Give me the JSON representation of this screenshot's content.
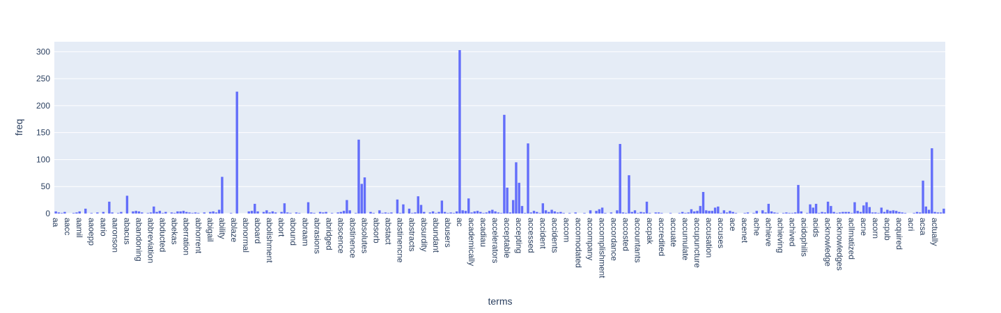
{
  "chart_data": {
    "type": "bar",
    "x_label": "terms",
    "y_label": "freq",
    "color": "#636efa",
    "grid": true,
    "ylim": [
      0,
      318.5
    ],
    "yticks": [
      0,
      50,
      100,
      150,
      200,
      250,
      300
    ],
    "categories": [
      "aa",
      null,
      null,
      null,
      "aacc",
      null,
      null,
      null,
      "aamil",
      null,
      null,
      null,
      "aaoepp",
      null,
      null,
      null,
      "aario",
      null,
      null,
      null,
      "aaronson",
      null,
      null,
      null,
      "abacus",
      null,
      null,
      null,
      "abandoning",
      null,
      null,
      null,
      "abbreviation",
      null,
      null,
      null,
      "abducted",
      null,
      null,
      null,
      "abekas",
      null,
      null,
      null,
      "aberration",
      null,
      null,
      null,
      "abhorrent",
      null,
      null,
      null,
      "abigail",
      null,
      null,
      null,
      "ability",
      null,
      null,
      null,
      "ablaze",
      null,
      null,
      null,
      "abnormal",
      null,
      null,
      null,
      "aboard",
      null,
      null,
      null,
      "abolishment",
      null,
      null,
      null,
      "abort",
      null,
      null,
      null,
      "abound",
      null,
      null,
      null,
      "abraam",
      null,
      null,
      null,
      "abrasions",
      null,
      null,
      null,
      "abridged",
      null,
      null,
      null,
      "abscence",
      null,
      null,
      null,
      "abstinence",
      null,
      null,
      null,
      "absolutes",
      null,
      null,
      null,
      "absorb",
      null,
      null,
      null,
      "abstact",
      null,
      null,
      null,
      "abstinencne",
      null,
      null,
      null,
      "abstracts",
      null,
      null,
      null,
      "absurdity",
      null,
      null,
      null,
      "abundant",
      null,
      null,
      null,
      "abusers",
      null,
      null,
      null,
      "ac",
      null,
      null,
      null,
      "academically",
      null,
      null,
      null,
      "acadiau",
      null,
      null,
      null,
      "accelerators",
      null,
      null,
      null,
      "acceptable",
      null,
      null,
      null,
      "accepting",
      null,
      null,
      null,
      "accessed",
      null,
      null,
      null,
      "accident",
      null,
      null,
      null,
      "accidents",
      null,
      null,
      null,
      "accom",
      null,
      null,
      null,
      "accomodated",
      null,
      null,
      null,
      "accompany",
      null,
      null,
      null,
      "accomplishment",
      null,
      null,
      null,
      "accordance",
      null,
      null,
      null,
      "accosted",
      null,
      null,
      null,
      "accountants",
      null,
      null,
      null,
      "accpak",
      null,
      null,
      null,
      "accredited",
      null,
      null,
      null,
      "accuate",
      null,
      null,
      null,
      "accumulate",
      null,
      null,
      null,
      "accupuncture",
      null,
      null,
      null,
      "accusation",
      null,
      null,
      null,
      "accuses",
      null,
      null,
      null,
      "ace",
      null,
      null,
      null,
      "acenet",
      null,
      null,
      null,
      "ache",
      null,
      null,
      null,
      "achieve",
      null,
      null,
      null,
      "achieving",
      null,
      null,
      null,
      "achived",
      null,
      null,
      null,
      "acidophilis",
      null,
      null,
      null,
      "acids",
      null,
      null,
      null,
      "acknowledge",
      null,
      null,
      null,
      "acknowledges",
      null,
      null,
      null,
      "acllmatized",
      null,
      null,
      null,
      "acne",
      null,
      null,
      null,
      "acorn",
      null,
      null,
      null,
      "acpub",
      null,
      null,
      null,
      "acquired",
      null,
      null,
      null,
      "acri",
      null,
      null,
      null,
      "acsa",
      null,
      null,
      null,
      "actually",
      null,
      null,
      null
    ],
    "values": [
      4,
      2,
      1,
      3,
      0,
      0,
      1,
      2,
      4,
      0,
      9,
      0,
      1,
      0,
      2,
      0,
      3,
      0,
      22,
      2,
      0,
      1,
      3,
      0,
      33,
      0,
      4,
      5,
      4,
      2,
      0,
      1,
      2,
      13,
      3,
      5,
      1,
      3,
      0,
      2,
      1,
      4,
      4,
      5,
      3,
      2,
      1,
      2,
      1,
      0,
      2,
      0,
      3,
      4,
      2,
      7,
      68,
      0,
      0,
      1,
      0,
      226,
      0,
      0,
      0,
      4,
      5,
      18,
      4,
      0,
      3,
      6,
      2,
      4,
      2,
      0,
      3,
      19,
      2,
      1,
      0,
      2,
      1,
      0,
      0,
      21,
      2,
      1,
      0,
      3,
      2,
      3,
      0,
      1,
      0,
      2,
      3,
      5,
      25,
      6,
      0,
      1,
      137,
      55,
      67,
      0,
      3,
      1,
      0,
      6,
      1,
      2,
      1,
      2,
      0,
      26,
      1,
      17,
      0,
      9,
      1,
      2,
      32,
      16,
      3,
      0,
      2,
      4,
      1,
      3,
      24,
      3,
      1,
      2,
      1,
      4,
      303,
      6,
      5,
      28,
      2,
      4,
      5,
      3,
      1,
      2,
      5,
      7,
      4,
      2,
      1,
      183,
      48,
      2,
      25,
      95,
      57,
      14,
      1,
      130,
      2,
      5,
      3,
      1,
      19,
      6,
      3,
      7,
      4,
      2,
      3,
      1,
      0,
      1,
      0,
      2,
      0,
      0,
      1,
      0,
      6,
      0,
      5,
      8,
      11,
      1,
      0,
      2,
      0,
      6,
      129,
      2,
      1,
      71,
      3,
      6,
      1,
      3,
      2,
      22,
      1,
      0,
      2,
      2,
      1,
      0,
      0,
      1,
      0,
      0,
      1,
      3,
      1,
      2,
      8,
      4,
      5,
      14,
      40,
      6,
      5,
      5,
      11,
      13,
      1,
      6,
      2,
      5,
      3,
      1,
      0,
      0,
      1,
      2,
      0,
      1,
      5,
      0,
      6,
      2,
      18,
      4,
      2,
      1,
      0,
      1,
      2,
      1,
      1,
      2,
      53,
      4,
      0,
      1,
      17,
      11,
      18,
      1,
      3,
      2,
      22,
      14,
      3,
      1,
      2,
      3,
      3,
      3,
      1,
      21,
      5,
      3,
      15,
      21,
      12,
      2,
      2,
      1,
      11,
      3,
      7,
      5,
      6,
      5,
      3,
      2,
      1,
      0,
      0,
      1,
      3,
      2,
      61,
      13,
      7,
      121,
      3,
      2,
      2,
      9
    ]
  }
}
